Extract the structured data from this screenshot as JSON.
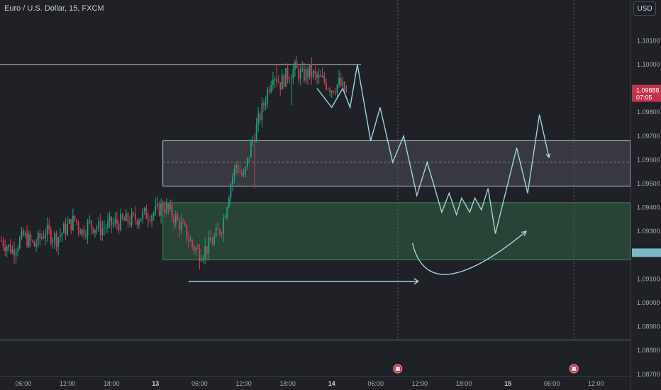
{
  "title": "Euro / U.S. Dollar, 15, FXCM",
  "currency_button": "USD",
  "colors": {
    "background": "#1f2126",
    "up_candle": "#1ea37a",
    "down_candle": "#d33c58",
    "projection_line": "#9fd4e0",
    "resistance_zone_fill": "#4a4d56",
    "support_zone_fill": "#2a4a3a",
    "current_price_badge": "#c2324a",
    "secondary_badge": "#7ab8c6"
  },
  "chart_data": {
    "type": "candlestick",
    "ylim": [
      1.087,
      1.102
    ],
    "y_ticks": [
      "1.10100",
      "1.10000",
      "1.09800",
      "1.09700",
      "1.09600",
      "1.09500",
      "1.09400",
      "1.09300",
      "1.09100",
      "1.09000",
      "1.08900",
      "1.08800",
      "1.08700"
    ],
    "y_tick_values": [
      1.101,
      1.1,
      1.098,
      1.097,
      1.096,
      1.095,
      1.094,
      1.093,
      1.091,
      1.09,
      1.089,
      1.088,
      1.087
    ],
    "x_ticks": [
      {
        "label": "06:00",
        "t": 0,
        "bold": false
      },
      {
        "label": "12:00",
        "t": 6,
        "bold": false
      },
      {
        "label": "18:00",
        "t": 12,
        "bold": false
      },
      {
        "label": "13",
        "t": 18,
        "bold": true
      },
      {
        "label": "06:00",
        "t": 24,
        "bold": false
      },
      {
        "label": "12:00",
        "t": 30,
        "bold": false
      },
      {
        "label": "18:00",
        "t": 36,
        "bold": false
      },
      {
        "label": "14",
        "t": 42,
        "bold": true
      },
      {
        "label": "06:00",
        "t": 48,
        "bold": false
      },
      {
        "label": "12:00",
        "t": 54,
        "bold": false
      },
      {
        "label": "18:00",
        "t": 60,
        "bold": false
      },
      {
        "label": "15",
        "t": 66,
        "bold": true
      },
      {
        "label": "06:00",
        "t": 72,
        "bold": false
      },
      {
        "label": "12:00",
        "t": 78,
        "bold": false
      }
    ],
    "current_price": {
      "value": "1.09888",
      "countdown": "07:05",
      "y": 1.09888
    },
    "candle_path": [
      [
        -3.0,
        1.0926
      ],
      [
        -1.5,
        1.0922
      ],
      [
        0.0,
        1.0928
      ],
      [
        1.5,
        1.0924
      ],
      [
        3.0,
        1.093
      ],
      [
        4.5,
        1.0927
      ],
      [
        6.0,
        1.0932
      ],
      [
        7.0,
        1.0935
      ],
      [
        8.0,
        1.093
      ],
      [
        9.0,
        1.0933
      ],
      [
        10.5,
        1.0931
      ],
      [
        12.0,
        1.0933
      ],
      [
        13.5,
        1.0934
      ],
      [
        15.0,
        1.0935
      ],
      [
        16.5,
        1.0937
      ],
      [
        18.0,
        1.0938
      ],
      [
        19.0,
        1.0941
      ],
      [
        20.0,
        1.0938
      ],
      [
        21.0,
        1.0934
      ],
      [
        22.0,
        1.093
      ],
      [
        23.0,
        1.0924
      ],
      [
        24.0,
        1.0921
      ],
      [
        25.0,
        1.0923
      ],
      [
        26.0,
        1.0927
      ],
      [
        27.0,
        1.0932
      ],
      [
        27.6,
        1.094
      ],
      [
        28.2,
        1.095
      ],
      [
        29.0,
        1.0958
      ],
      [
        30.0,
        1.0952
      ],
      [
        31.0,
        1.0966
      ],
      [
        32.0,
        1.0976
      ],
      [
        33.0,
        1.0986
      ],
      [
        34.0,
        1.0997
      ],
      [
        35.0,
        1.0992
      ],
      [
        36.0,
        1.0996
      ],
      [
        37.0,
        1.0998
      ],
      [
        38.0,
        1.0995
      ],
      [
        39.0,
        1.0997
      ],
      [
        40.0,
        1.0994
      ],
      [
        41.0,
        1.0993
      ],
      [
        42.0,
        1.099
      ],
      [
        43.0,
        1.0992
      ],
      [
        44.0,
        1.0988
      ]
    ],
    "extremes": [
      {
        "t": 24.0,
        "low": 1.0914
      },
      {
        "t": 34.5,
        "high": 1.1
      },
      {
        "t": 36.5,
        "low": 1.0983
      },
      {
        "t": 31.5,
        "low": 1.0948
      }
    ],
    "resistance_line": {
      "y": 1.1,
      "t_start": -6.8,
      "t_end": 46.0
    },
    "resistance_zone": {
      "y_top": 1.0968,
      "y_bottom": 1.0949,
      "t_start": 19.0
    },
    "support_zone": {
      "y_top": 1.0942,
      "y_bottom": 1.0918,
      "t_start": 19.0
    },
    "dashed_level": {
      "y": 1.0959
    },
    "projection_path": [
      [
        40.0,
        1.099
      ],
      [
        42.0,
        1.0982
      ],
      [
        43.5,
        1.099
      ],
      [
        44.5,
        1.0982
      ],
      [
        45.5,
        1.1
      ],
      [
        47.3,
        1.0968
      ],
      [
        48.6,
        1.0982
      ],
      [
        50.3,
        1.0959
      ],
      [
        51.8,
        1.097
      ],
      [
        53.6,
        1.0945
      ],
      [
        55.0,
        1.0959
      ],
      [
        57.0,
        1.0938
      ],
      [
        58.0,
        1.0946
      ],
      [
        59.0,
        1.0937
      ],
      [
        59.7,
        1.0944
      ],
      [
        60.8,
        1.0938
      ],
      [
        61.5,
        1.0944
      ],
      [
        62.4,
        1.0939
      ],
      [
        63.3,
        1.0948
      ],
      [
        64.3,
        1.0929
      ],
      [
        67.2,
        1.0965
      ],
      [
        68.7,
        1.0946
      ],
      [
        70.3,
        1.0979
      ],
      [
        71.6,
        1.0961
      ]
    ],
    "arc_projection": [
      [
        53.0,
        1.0925
      ],
      [
        58.0,
        1.0912
      ],
      [
        68.5,
        1.093
      ]
    ],
    "horizontal_arrow": {
      "y": 1.0909,
      "t_start": 22.5,
      "t_end": 53.8
    },
    "event_markers": [
      {
        "t": 51.0
      },
      {
        "t": 75.0
      }
    ],
    "secondary_badge_y": 1.0921
  }
}
